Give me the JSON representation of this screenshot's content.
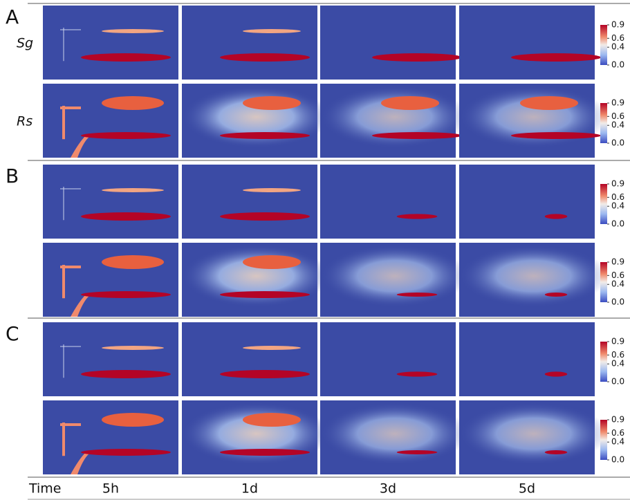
{
  "sections": [
    {
      "label": "A"
    },
    {
      "label": "B"
    },
    {
      "label": "C"
    }
  ],
  "row_labels": [
    "Sg",
    "Rs"
  ],
  "time_label": "Time",
  "times": [
    "5h",
    "1d",
    "3d",
    "5d"
  ],
  "colorbar_ticks": [
    0.9,
    0.6,
    0.4,
    {
      "value": 0,
      "label": "0.0"
    }
  ]
}
